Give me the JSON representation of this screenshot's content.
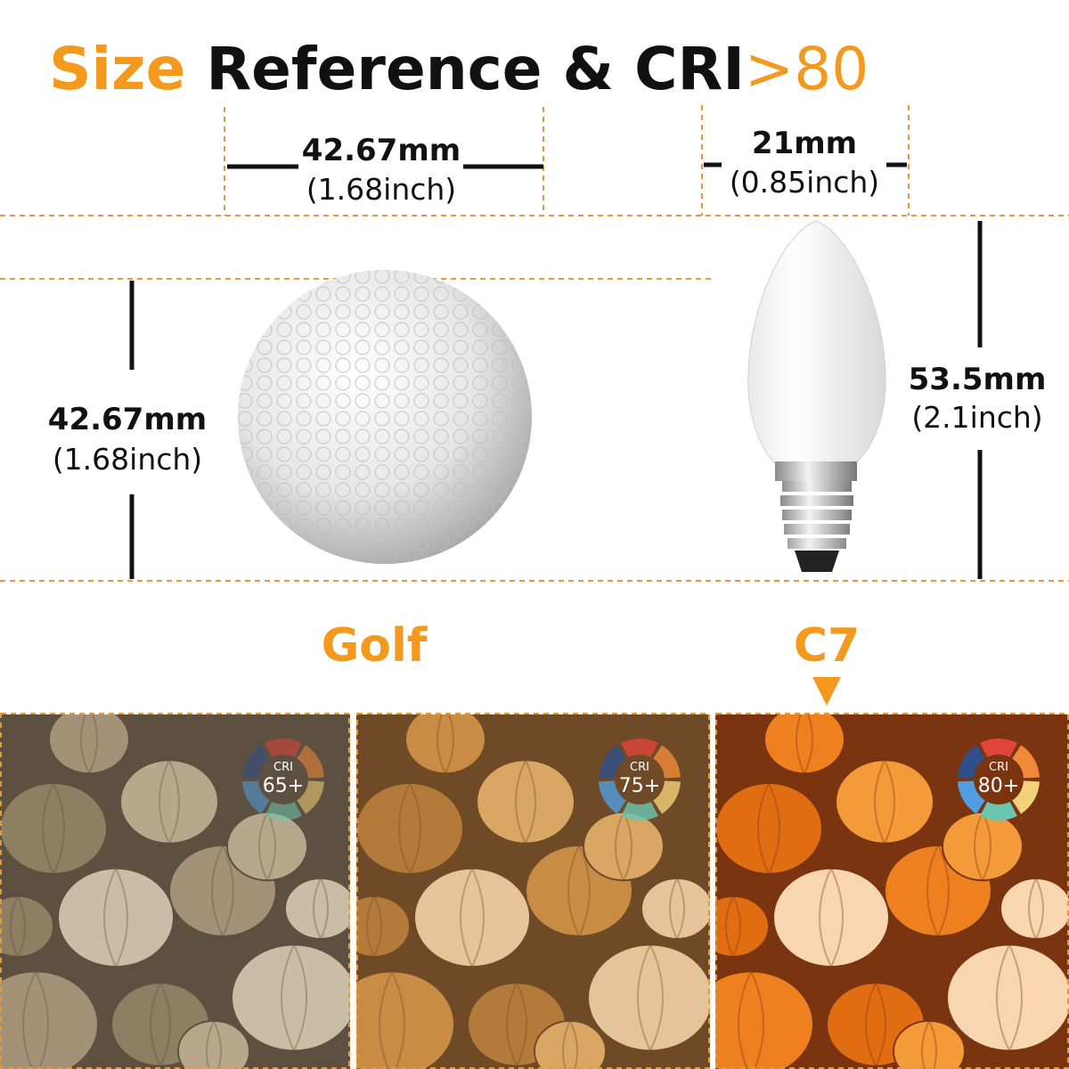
{
  "title": {
    "part1": "Size",
    "part2": "Reference & CRI",
    "part3": ">80"
  },
  "golf": {
    "width": "42.67mm",
    "width_inch": "(1.68inch)",
    "height": "42.67mm",
    "height_inch": "(1.68inch)",
    "label": "Golf"
  },
  "bulb": {
    "width": "21mm",
    "width_inch": "(0.85inch)",
    "height": "53.5mm",
    "height_inch": "(2.1inch)",
    "label": "C7"
  },
  "panels": [
    {
      "cri_label": "CRI",
      "cri_value": "65+"
    },
    {
      "cri_label": "CRI",
      "cri_value": "75+"
    },
    {
      "cri_label": "CRI",
      "cri_value": "80+"
    }
  ]
}
